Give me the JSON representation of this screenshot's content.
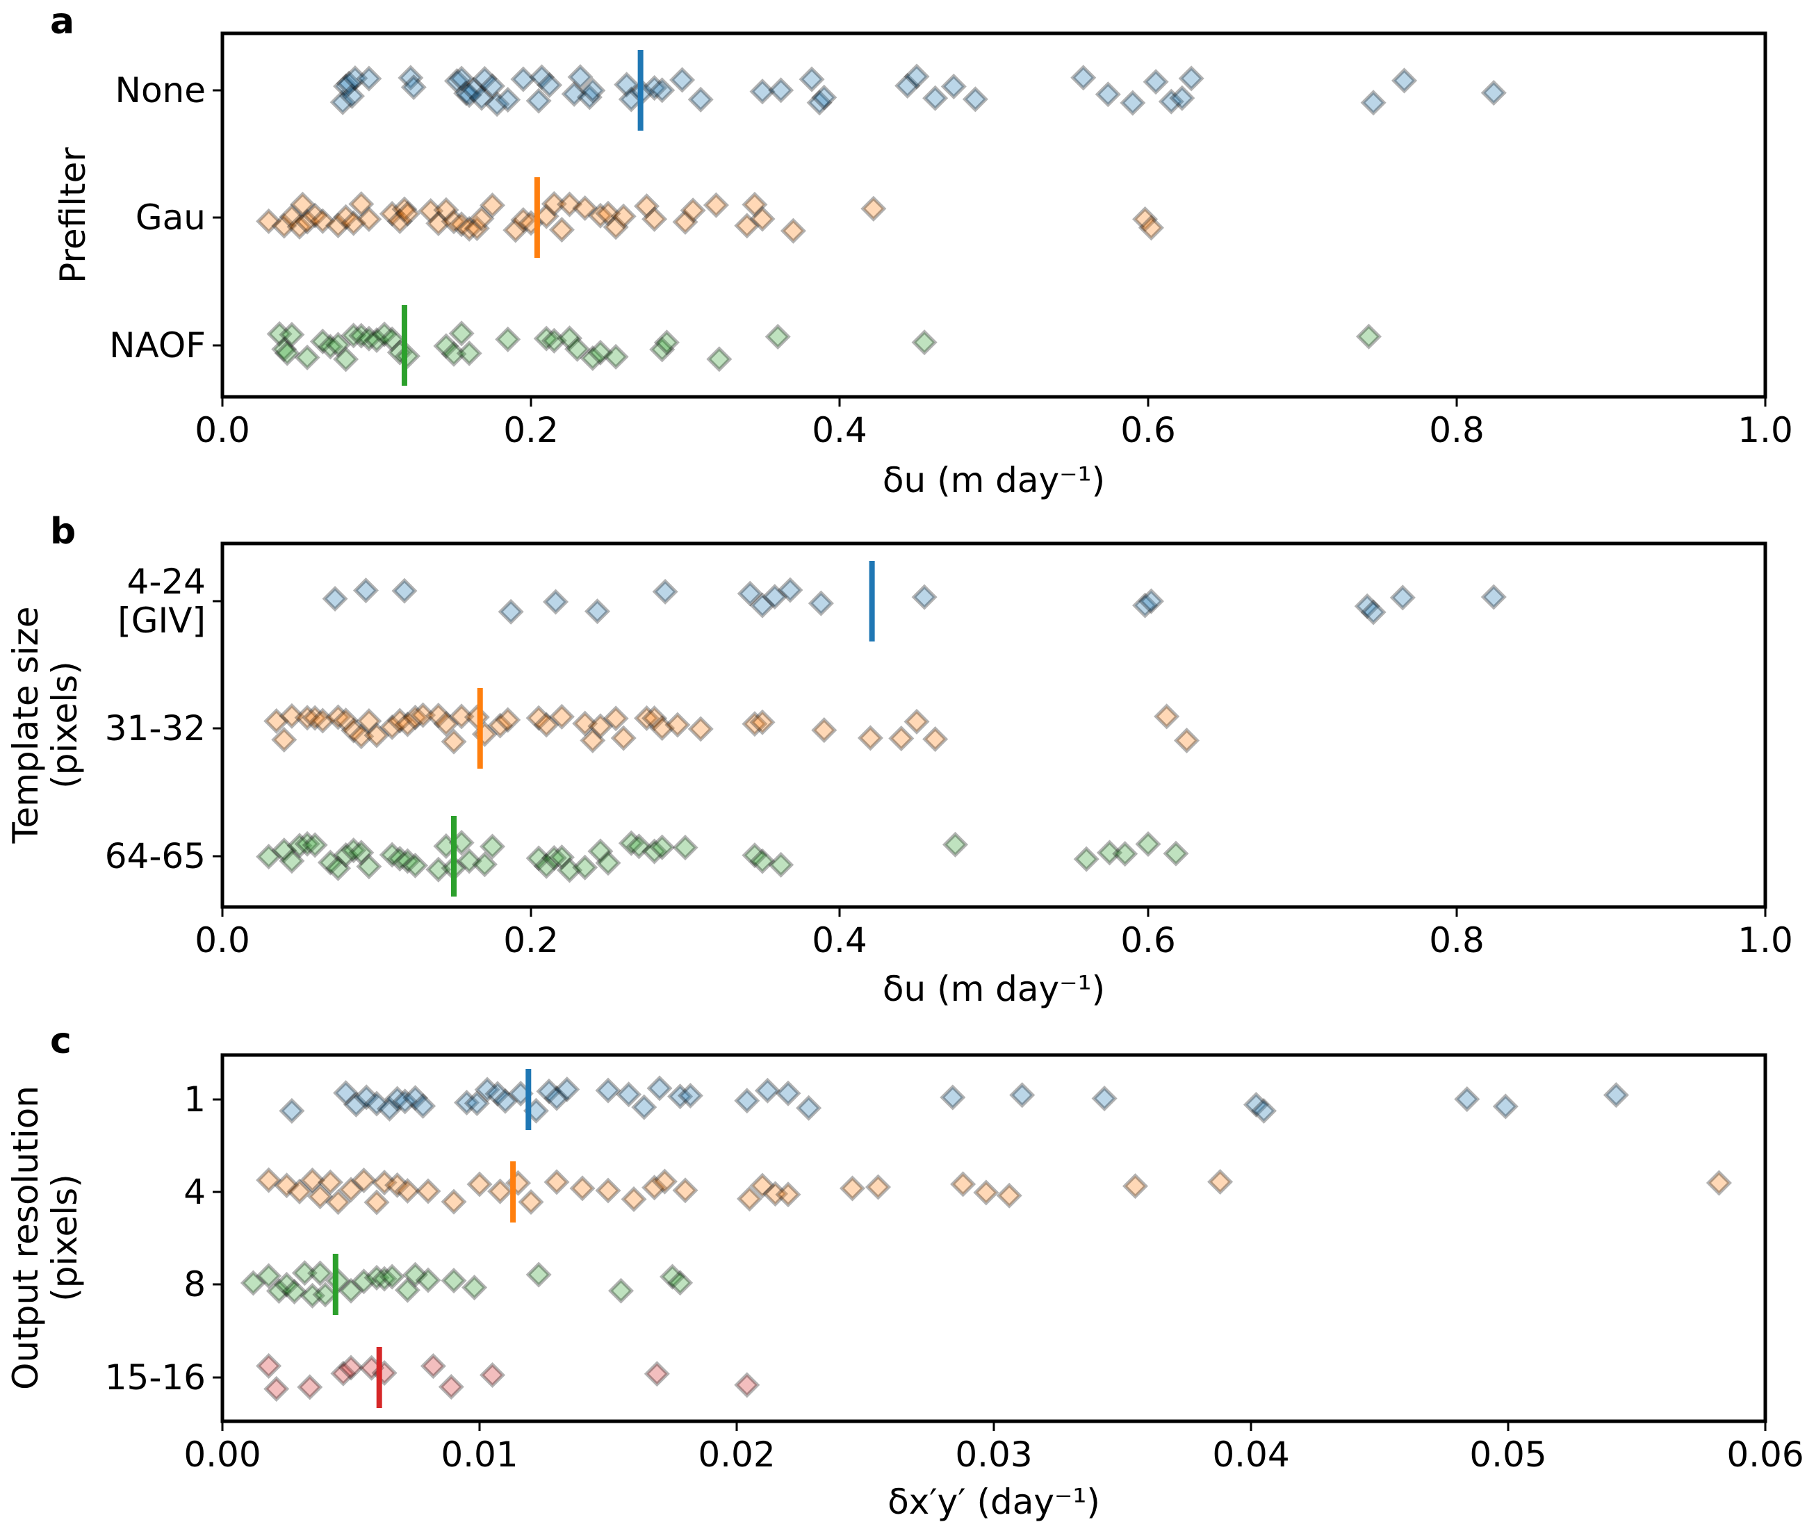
{
  "chart_data": [
    {
      "type": "scatter",
      "panel": "a",
      "ylabel": "Prefilter",
      "xlabel": "δu (m day⁻¹)",
      "xlim": [
        0.0,
        1.0
      ],
      "xticks": [
        "0.0",
        "0.2",
        "0.4",
        "0.6",
        "0.8",
        "1.0"
      ],
      "tick_values": [
        0.0,
        0.2,
        0.4,
        0.6,
        0.8,
        1.0
      ],
      "categories": [
        {
          "label": "None",
          "color": "#1f77b4",
          "mean": 0.271,
          "values": [
            0.078,
            0.08,
            0.082,
            0.084,
            0.086,
            0.095,
            0.122,
            0.124,
            0.152,
            0.155,
            0.158,
            0.16,
            0.163,
            0.168,
            0.17,
            0.175,
            0.178,
            0.185,
            0.195,
            0.205,
            0.207,
            0.212,
            0.228,
            0.232,
            0.238,
            0.24,
            0.262,
            0.265,
            0.272,
            0.28,
            0.285,
            0.298,
            0.31,
            0.35,
            0.362,
            0.382,
            0.387,
            0.39,
            0.444,
            0.45,
            0.462,
            0.474,
            0.488,
            0.558,
            0.574,
            0.59,
            0.605,
            0.615,
            0.622,
            0.628,
            0.746,
            0.766,
            0.824
          ]
        },
        {
          "label": "Gau",
          "color": "#ff7f0e",
          "mean": 0.204,
          "values": [
            0.03,
            0.04,
            0.045,
            0.05,
            0.052,
            0.055,
            0.06,
            0.065,
            0.075,
            0.08,
            0.085,
            0.09,
            0.095,
            0.11,
            0.115,
            0.118,
            0.12,
            0.135,
            0.14,
            0.145,
            0.15,
            0.155,
            0.16,
            0.165,
            0.168,
            0.175,
            0.19,
            0.195,
            0.2,
            0.21,
            0.215,
            0.22,
            0.225,
            0.235,
            0.245,
            0.25,
            0.255,
            0.26,
            0.275,
            0.28,
            0.3,
            0.305,
            0.32,
            0.34,
            0.345,
            0.35,
            0.37,
            0.422,
            0.598,
            0.602
          ]
        },
        {
          "label": "NAOF",
          "color": "#2ca02c",
          "mean": 0.118,
          "values": [
            0.037,
            0.04,
            0.042,
            0.045,
            0.055,
            0.065,
            0.07,
            0.075,
            0.08,
            0.085,
            0.09,
            0.095,
            0.1,
            0.105,
            0.11,
            0.115,
            0.12,
            0.145,
            0.15,
            0.155,
            0.16,
            0.185,
            0.21,
            0.215,
            0.225,
            0.23,
            0.24,
            0.245,
            0.255,
            0.285,
            0.288,
            0.322,
            0.36,
            0.455,
            0.743
          ]
        }
      ]
    },
    {
      "type": "scatter",
      "panel": "b",
      "ylabel": "Template size\n(pixels)",
      "xlabel": "δu (m day⁻¹)",
      "xlim": [
        0.0,
        1.0
      ],
      "xticks": [
        "0.0",
        "0.2",
        "0.4",
        "0.6",
        "0.8",
        "1.0"
      ],
      "tick_values": [
        0.0,
        0.2,
        0.4,
        0.6,
        0.8,
        1.0
      ],
      "categories": [
        {
          "label": "4-24\n[GIV]",
          "color": "#1f77b4",
          "mean": 0.421,
          "values": [
            0.073,
            0.093,
            0.118,
            0.187,
            0.216,
            0.243,
            0.287,
            0.342,
            0.35,
            0.358,
            0.368,
            0.388,
            0.455,
            0.598,
            0.602,
            0.742,
            0.746,
            0.765,
            0.824
          ]
        },
        {
          "label": "31-32",
          "color": "#ff7f0e",
          "mean": 0.167,
          "values": [
            0.035,
            0.04,
            0.045,
            0.055,
            0.06,
            0.065,
            0.075,
            0.08,
            0.085,
            0.09,
            0.095,
            0.1,
            0.11,
            0.115,
            0.12,
            0.125,
            0.13,
            0.14,
            0.145,
            0.15,
            0.155,
            0.165,
            0.17,
            0.18,
            0.185,
            0.205,
            0.21,
            0.22,
            0.235,
            0.24,
            0.245,
            0.255,
            0.26,
            0.275,
            0.28,
            0.285,
            0.295,
            0.31,
            0.345,
            0.35,
            0.39,
            0.42,
            0.44,
            0.45,
            0.462,
            0.612,
            0.625
          ]
        },
        {
          "label": "64-65",
          "color": "#2ca02c",
          "mean": 0.15,
          "values": [
            0.03,
            0.04,
            0.045,
            0.05,
            0.055,
            0.06,
            0.07,
            0.075,
            0.08,
            0.085,
            0.09,
            0.095,
            0.11,
            0.115,
            0.12,
            0.125,
            0.14,
            0.145,
            0.15,
            0.155,
            0.16,
            0.17,
            0.175,
            0.205,
            0.21,
            0.215,
            0.22,
            0.225,
            0.235,
            0.245,
            0.25,
            0.265,
            0.27,
            0.28,
            0.285,
            0.3,
            0.345,
            0.35,
            0.362,
            0.475,
            0.56,
            0.575,
            0.585,
            0.6,
            0.618
          ]
        }
      ]
    },
    {
      "type": "scatter",
      "panel": "c",
      "ylabel": "Output resolution\n(pixels)",
      "xlabel": "δx′y′ (day⁻¹)",
      "xlim": [
        0.0,
        0.06
      ],
      "xticks": [
        "0.00",
        "0.01",
        "0.02",
        "0.03",
        "0.04",
        "0.05",
        "0.06"
      ],
      "tick_values": [
        0.0,
        0.01,
        0.02,
        0.03,
        0.04,
        0.05,
        0.06
      ],
      "categories": [
        {
          "label": "1",
          "color": "#1f77b4",
          "mean": 0.0119,
          "values": [
            0.0027,
            0.0048,
            0.0052,
            0.0056,
            0.006,
            0.0065,
            0.0068,
            0.0071,
            0.0075,
            0.0078,
            0.0095,
            0.0099,
            0.0103,
            0.0107,
            0.011,
            0.0116,
            0.0122,
            0.0127,
            0.013,
            0.0134,
            0.015,
            0.0158,
            0.0164,
            0.017,
            0.0178,
            0.0182,
            0.0204,
            0.0212,
            0.022,
            0.0228,
            0.0284,
            0.0311,
            0.0343,
            0.0402,
            0.0405,
            0.0484,
            0.0499,
            0.0542
          ]
        },
        {
          "label": "4",
          "color": "#ff7f0e",
          "mean": 0.0113,
          "values": [
            0.0018,
            0.0025,
            0.003,
            0.0035,
            0.0038,
            0.0042,
            0.0045,
            0.005,
            0.0055,
            0.006,
            0.0063,
            0.0068,
            0.0072,
            0.008,
            0.009,
            0.01,
            0.0108,
            0.0115,
            0.012,
            0.013,
            0.014,
            0.015,
            0.016,
            0.0168,
            0.0172,
            0.018,
            0.0205,
            0.021,
            0.0215,
            0.022,
            0.0245,
            0.0255,
            0.0288,
            0.0297,
            0.0306,
            0.0355,
            0.0388,
            0.0582
          ]
        },
        {
          "label": "8",
          "color": "#2ca02c",
          "mean": 0.0044,
          "values": [
            0.0012,
            0.0018,
            0.0022,
            0.0025,
            0.0028,
            0.0032,
            0.0035,
            0.0038,
            0.004,
            0.0045,
            0.005,
            0.0055,
            0.006,
            0.0063,
            0.0066,
            0.0072,
            0.0075,
            0.008,
            0.009,
            0.0098,
            0.0123,
            0.0155,
            0.0175,
            0.0178
          ]
        },
        {
          "label": "15-16",
          "color": "#d62728",
          "mean": 0.0061,
          "values": [
            0.0018,
            0.0021,
            0.0034,
            0.0047,
            0.005,
            0.0058,
            0.0063,
            0.0082,
            0.0089,
            0.0105,
            0.0169,
            0.0204
          ]
        }
      ]
    }
  ],
  "panels": {
    "a": {
      "letter": "a"
    },
    "b": {
      "letter": "b"
    },
    "c": {
      "letter": "c"
    }
  }
}
